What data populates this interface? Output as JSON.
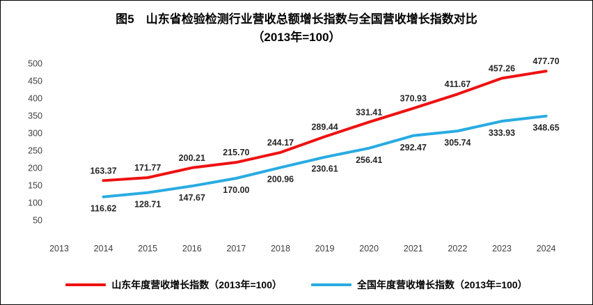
{
  "figure": {
    "title_line1": "图5　山东省检验检测行业营收总额增长指数与全国营收增长指数对比",
    "title_line2": "（2013年=100）"
  },
  "chart_data": {
    "type": "line",
    "title": "图5 山东省检验检测行业营收总额增长指数与全国营收增长指数对比（2013年=100）",
    "x": [
      "2013",
      "2014",
      "2015",
      "2016",
      "2017",
      "2018",
      "2019",
      "2020",
      "2021",
      "2022",
      "2023",
      "2024"
    ],
    "series": [
      {
        "name": "山东年度营收增长指数（2013年=100）",
        "color": "#ee1111",
        "values_start_x": "2014",
        "values": [
          163.37,
          171.77,
          200.21,
          215.7,
          244.17,
          289.44,
          331.41,
          370.93,
          411.67,
          457.26,
          477.7
        ],
        "label_position": "above"
      },
      {
        "name": "全国年度营收增长指数（2013年=100）",
        "color": "#29abe2",
        "values_start_x": "2014",
        "values": [
          116.62,
          128.71,
          147.67,
          170.0,
          200.96,
          230.61,
          256.41,
          292.47,
          305.74,
          333.93,
          348.65
        ],
        "label_position": "below"
      }
    ],
    "ylim": [
      0,
      500
    ],
    "yticks": [
      50,
      100,
      150,
      200,
      250,
      300,
      350,
      400,
      450,
      500
    ],
    "grid": false,
    "legend_position": "bottom",
    "data_labels": true
  }
}
